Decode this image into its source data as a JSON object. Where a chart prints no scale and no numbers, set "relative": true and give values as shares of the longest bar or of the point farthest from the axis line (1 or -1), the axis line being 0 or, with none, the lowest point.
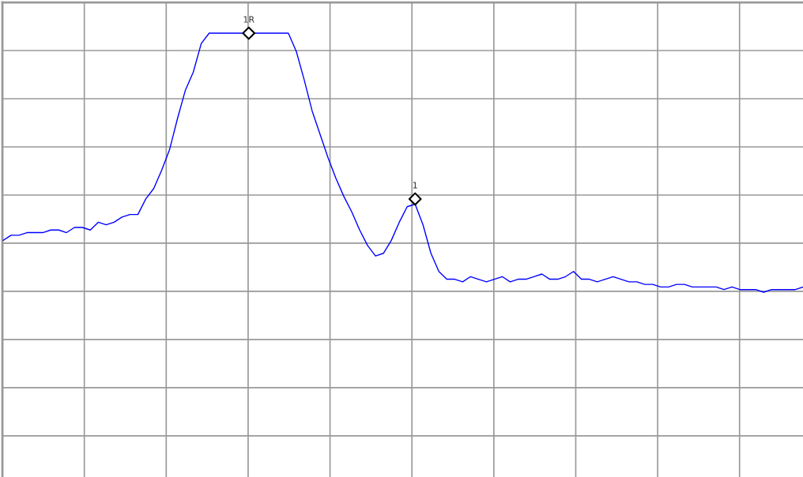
{
  "chart_data": {
    "type": "line",
    "relative": true,
    "grid": true,
    "marker": "none",
    "line_style": "solid",
    "categories": [
      null,
      null,
      null,
      null,
      null,
      null,
      null,
      null,
      null,
      null,
      null,
      null,
      null,
      null,
      null,
      null,
      null,
      null,
      null,
      null,
      null,
      null,
      null,
      null,
      null,
      null,
      null,
      null,
      null,
      null,
      null,
      null,
      null,
      null,
      null,
      null,
      null,
      null,
      null,
      null,
      null,
      null,
      null,
      null,
      null,
      null,
      null,
      null,
      null,
      null,
      null,
      null,
      null,
      null,
      null,
      null,
      null,
      null,
      null,
      null,
      null,
      null,
      null,
      null,
      null,
      null,
      null,
      null,
      null,
      null,
      null,
      null,
      null,
      null,
      null,
      null,
      null,
      null,
      null,
      null,
      null,
      null,
      null,
      null,
      null,
      null,
      null,
      null,
      null,
      null,
      null,
      null,
      null,
      null,
      null,
      null,
      null,
      null,
      null,
      null,
      null,
      null
    ],
    "series": [
      {
        "color": "#0000ff",
        "values": [
          0.2,
          0.22,
          0.22,
          0.23,
          0.23,
          0.23,
          0.24,
          0.24,
          0.23,
          0.25,
          0.25,
          0.24,
          0.27,
          0.26,
          0.27,
          0.29,
          0.3,
          0.3,
          0.36,
          0.4,
          0.47,
          0.55,
          0.67,
          0.78,
          0.85,
          0.96,
          1,
          1,
          1,
          1,
          1,
          1,
          1,
          1,
          1,
          1,
          1,
          0.93,
          0.82,
          0.7,
          0.61,
          0.52,
          0.44,
          0.37,
          0.31,
          0.24,
          0.18,
          0.14,
          0.15,
          0.2,
          0.27,
          0.33,
          0.34,
          0.26,
          0.15,
          0.08,
          0.05,
          0.05,
          0.04,
          0.06,
          0.05,
          0.04,
          0.05,
          0.06,
          0.04,
          0.05,
          0.05,
          0.06,
          0.07,
          0.05,
          0.05,
          0.06,
          0.08,
          0.05,
          0.05,
          0.04,
          0.05,
          0.06,
          0.05,
          0.04,
          0.04,
          0.03,
          0.03,
          0.02,
          0.02,
          0.03,
          0.03,
          0.02,
          0.02,
          0.02,
          0.02,
          0.01,
          0.02,
          0.01,
          0.01,
          0.01,
          0,
          0.01,
          0.01,
          0.01,
          0.01,
          0.02
        ]
      }
    ],
    "annotations": [
      {
        "text": "1R",
        "y": 1
      },
      {
        "text": "1",
        "y": 0.36
      }
    ]
  }
}
